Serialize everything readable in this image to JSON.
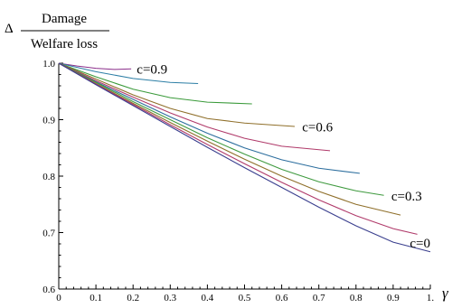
{
  "chart_data": {
    "type": "line",
    "ylabel_prefix": "Δ",
    "ylabel_numerator": "Damage",
    "ylabel_denominator": "Welfare loss",
    "xlabel": "γ",
    "xlim": [
      0,
      1.0
    ],
    "ylim": [
      0.6,
      1.0
    ],
    "x_ticks": [
      0,
      0.1,
      0.2,
      0.3,
      0.4,
      0.5,
      0.6,
      0.7,
      0.8,
      0.9,
      1.0
    ],
    "x_tick_labels": [
      "0",
      "0.1",
      "0.2",
      "0.3",
      "0.4",
      "0.5",
      "0.6",
      "0.7",
      "0.8",
      "0.9",
      "1."
    ],
    "y_ticks": [
      0.6,
      0.7,
      0.8,
      0.9,
      1.0
    ],
    "y_tick_labels": [
      "0.6",
      "0.7",
      "0.8",
      "0.9",
      "1.0"
    ],
    "grid": false,
    "series": [
      {
        "color": "#8b2f8b",
        "x": [
          0,
          0.05,
          0.1,
          0.15,
          0.195
        ],
        "y": [
          1.0,
          0.995,
          0.991,
          0.989,
          0.99
        ]
      },
      {
        "color": "#2c7ea5",
        "x": [
          0,
          0.1,
          0.2,
          0.3,
          0.375
        ],
        "y": [
          1.0,
          0.985,
          0.973,
          0.966,
          0.964
        ]
      },
      {
        "color": "#3a9a3a",
        "x": [
          0,
          0.1,
          0.2,
          0.3,
          0.4,
          0.52
        ],
        "y": [
          1.0,
          0.976,
          0.954,
          0.939,
          0.931,
          0.928
        ]
      },
      {
        "color": "#8f6f2a",
        "x": [
          0,
          0.1,
          0.2,
          0.3,
          0.4,
          0.5,
          0.635
        ],
        "y": [
          1.0,
          0.972,
          0.944,
          0.92,
          0.902,
          0.894,
          0.888
        ]
      },
      {
        "color": "#b03a6a",
        "x": [
          0,
          0.1,
          0.2,
          0.3,
          0.4,
          0.5,
          0.6,
          0.73
        ],
        "y": [
          1.0,
          0.969,
          0.94,
          0.912,
          0.887,
          0.867,
          0.853,
          0.845
        ]
      },
      {
        "color": "#2c6e9e",
        "x": [
          0,
          0.1,
          0.2,
          0.3,
          0.4,
          0.5,
          0.6,
          0.7,
          0.81
        ],
        "y": [
          1.0,
          0.967,
          0.936,
          0.905,
          0.876,
          0.85,
          0.829,
          0.814,
          0.805
        ]
      },
      {
        "color": "#3f9a3f",
        "x": [
          0,
          0.1,
          0.2,
          0.3,
          0.4,
          0.5,
          0.6,
          0.7,
          0.8,
          0.875
        ],
        "y": [
          1.0,
          0.966,
          0.932,
          0.9,
          0.868,
          0.839,
          0.812,
          0.79,
          0.774,
          0.766
        ]
      },
      {
        "color": "#8f6f2a",
        "x": [
          0,
          0.1,
          0.2,
          0.3,
          0.4,
          0.5,
          0.6,
          0.7,
          0.8,
          0.92
        ],
        "y": [
          1.0,
          0.964,
          0.929,
          0.895,
          0.862,
          0.83,
          0.8,
          0.773,
          0.75,
          0.731
        ]
      },
      {
        "color": "#b03a6a",
        "x": [
          0,
          0.1,
          0.2,
          0.3,
          0.4,
          0.5,
          0.6,
          0.7,
          0.8,
          0.9,
          0.965
        ],
        "y": [
          1.0,
          0.963,
          0.927,
          0.891,
          0.856,
          0.822,
          0.789,
          0.758,
          0.73,
          0.707,
          0.697
        ]
      },
      {
        "color": "#3a3f8e",
        "x": [
          0,
          0.1,
          0.2,
          0.3,
          0.4,
          0.5,
          0.6,
          0.7,
          0.8,
          0.9,
          1.0
        ],
        "y": [
          1.0,
          0.962,
          0.925,
          0.888,
          0.851,
          0.815,
          0.78,
          0.745,
          0.712,
          0.683,
          0.666
        ]
      }
    ],
    "annotations": [
      {
        "text": "c=0.9",
        "x": 0.21,
        "y": 0.99
      },
      {
        "text": "c=0.6",
        "x": 0.655,
        "y": 0.887
      },
      {
        "text": "c=0.3",
        "x": 0.895,
        "y": 0.765
      },
      {
        "text": "c=0",
        "x": 0.945,
        "y": 0.682
      }
    ]
  }
}
